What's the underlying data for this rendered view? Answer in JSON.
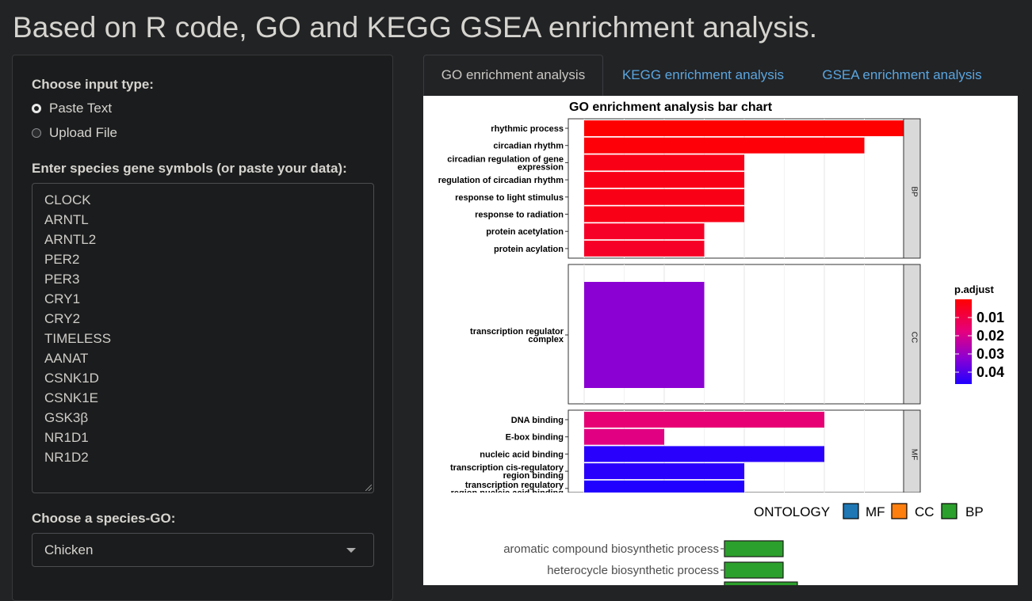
{
  "app": {
    "title": "Based on R code, GO and KEGG GSEA enrichment analysis."
  },
  "sidebar": {
    "input_type_label": "Choose input type:",
    "input_types": [
      {
        "label": "Paste Text",
        "checked": true
      },
      {
        "label": "Upload File",
        "checked": false
      }
    ],
    "genes_label": "Enter species gene symbols (or paste your data):",
    "genes": [
      "CLOCK",
      "ARNTL",
      "ARNTL2",
      "PER2",
      "PER3",
      "CRY1",
      "CRY2",
      "TIMELESS",
      "AANAT",
      "CSNK1D",
      "CSNK1E",
      "GSK3β",
      "NR1D1",
      "NR1D2"
    ],
    "species_label": "Choose a species-GO:",
    "species_value": "Chicken"
  },
  "tabs": [
    {
      "label": "GO enrichment analysis",
      "active": true
    },
    {
      "label": "KEGG enrichment analysis",
      "active": false
    },
    {
      "label": "GSEA enrichment analysis",
      "active": false
    }
  ],
  "colors": {
    "bar_red": "#ff0000",
    "bar_blue": "#0000ff",
    "legend_mf": "#1f77b4",
    "legend_cc": "#ff7f0e",
    "legend_bp": "#2ca02c"
  },
  "chart_data": [
    {
      "type": "bar",
      "title": "GO enrichment analysis bar chart",
      "orientation": "horizontal",
      "color_by": "p.adjust",
      "colorbar": {
        "title": "p.adjust",
        "ticks": [
          "0.01",
          "0.02",
          "0.03",
          "0.04"
        ],
        "low_color": "#ff0000",
        "high_color": "#0000ff"
      },
      "facets": [
        {
          "name": "BP",
          "categories": [
            "rhythmic process",
            "circadian rhythm",
            "circadian regulation of gene expression",
            "regulation of circadian rhythm",
            "response to light stimulus",
            "response to radiation",
            "protein acetylation",
            "protein acylation"
          ],
          "values": [
            8,
            7,
            4,
            4,
            4,
            4,
            3,
            3
          ],
          "padjust": [
            0.003,
            0.004,
            0.006,
            0.006,
            0.006,
            0.006,
            0.008,
            0.008
          ]
        },
        {
          "name": "CC",
          "categories": [
            "transcription regulator complex"
          ],
          "values": [
            3
          ],
          "padjust": [
            0.033
          ]
        },
        {
          "name": "MF",
          "categories": [
            "DNA binding",
            "E-box binding",
            "nucleic acid binding",
            "transcription cis-regulatory region binding",
            "transcription regulatory region nucleic acid binding"
          ],
          "values": [
            6,
            2,
            6,
            4,
            4
          ],
          "padjust": [
            0.018,
            0.02,
            0.045,
            0.045,
            0.046
          ]
        }
      ]
    },
    {
      "type": "bar",
      "orientation": "horizontal",
      "legend": {
        "title": "ONTOLOGY",
        "entries": [
          "MF",
          "CC",
          "BP"
        ],
        "placement": "top"
      },
      "categories": [
        "aromatic compound biosynthetic process",
        "heterocycle biosynthetic process"
      ],
      "values": [
        4,
        4
      ],
      "series_color": "#2ca02c"
    }
  ]
}
